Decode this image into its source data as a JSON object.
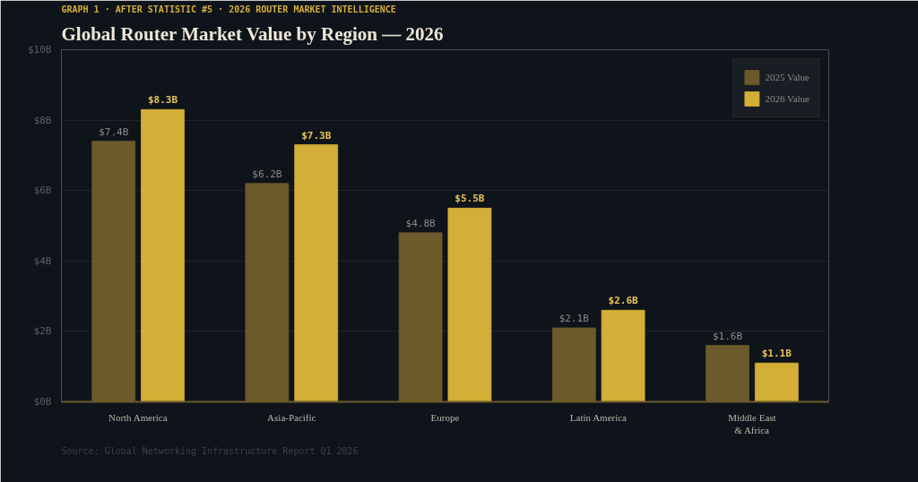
{
  "chart_data": {
    "type": "bar",
    "subtitle": "GRAPH 1  ·  AFTER STATISTIC #5  ·  2026 ROUTER MARKET INTELLIGENCE",
    "title": "Global Router Market Value by Region — 2026",
    "categories": [
      "North America",
      "Asia-Pacific",
      "Europe",
      "Latin America",
      "Middle East\n& Africa"
    ],
    "series": [
      {
        "name": "2025 Value",
        "color": "#6b5b2b",
        "values": [
          7.4,
          6.2,
          4.8,
          2.1,
          1.6
        ],
        "value_labels": [
          "$7.4B",
          "$6.2B",
          "$4.8B",
          "$2.1B",
          "$1.6B"
        ]
      },
      {
        "name": "2026 Value",
        "color": "#d4af37",
        "values": [
          8.3,
          7.3,
          5.5,
          2.6,
          1.1
        ],
        "value_labels": [
          "$8.3B",
          "$7.3B",
          "$5.5B",
          "$2.6B",
          "$1.1B"
        ]
      }
    ],
    "ylim": [
      0,
      10
    ],
    "yticks": [
      {
        "value": 0,
        "label": "$0B"
      },
      {
        "value": 2,
        "label": "$2B"
      },
      {
        "value": 4,
        "label": "$4B"
      },
      {
        "value": 6,
        "label": "$6B"
      },
      {
        "value": 8,
        "label": "$8B"
      },
      {
        "value": 10,
        "label": "$10B"
      }
    ],
    "grid": "y",
    "legend": "top right",
    "annotations": [
      "Source: Global Networking Infrastructure Report Q1 2026"
    ]
  }
}
